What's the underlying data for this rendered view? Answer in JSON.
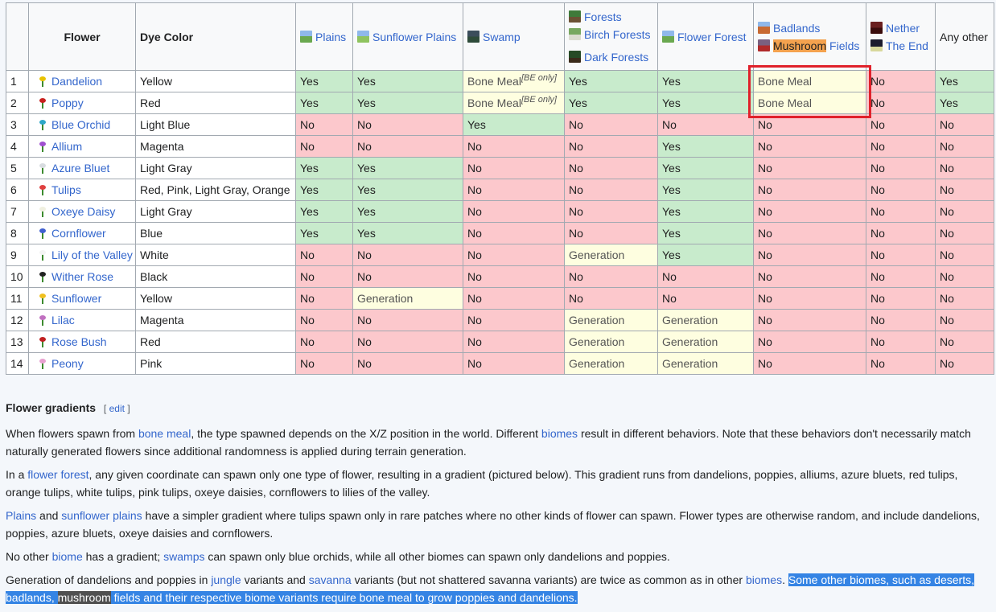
{
  "table": {
    "headers": {
      "num": "",
      "flower": "Flower",
      "dye": "Dye Color",
      "plains": "Plains",
      "sunflower_plains": "Sunflower Plains",
      "swamp": "Swamp",
      "forests": "Forests",
      "birch_forests": "Birch Forests",
      "dark_forests": "Dark Forests",
      "flower_forest": "Flower Forest",
      "badlands": "Badlands",
      "mushroom": "Mushroom",
      "fields": "Fields",
      "nether": "Nether",
      "the_end": "The End",
      "any_other": "Any other"
    },
    "be_only": "[BE only]",
    "rows": [
      {
        "n": "1",
        "flower": "Dandelion",
        "icon_color": "#e8c200",
        "dye": "Yellow",
        "cells": [
          "Yes",
          "Yes",
          "Bone Meal",
          "Yes",
          "Yes",
          "Bone Meal",
          "No",
          "Yes"
        ]
      },
      {
        "n": "2",
        "flower": "Poppy",
        "icon_color": "#c8201e",
        "dye": "Red",
        "cells": [
          "Yes",
          "Yes",
          "Bone Meal",
          "Yes",
          "Yes",
          "Bone Meal",
          "No",
          "Yes"
        ]
      },
      {
        "n": "3",
        "flower": "Blue Orchid",
        "icon_color": "#2ea7c8",
        "dye": "Light Blue",
        "cells": [
          "No",
          "No",
          "Yes",
          "No",
          "No",
          "No",
          "No",
          "No"
        ]
      },
      {
        "n": "4",
        "flower": "Allium",
        "icon_color": "#a050d0",
        "dye": "Magenta",
        "cells": [
          "No",
          "No",
          "No",
          "No",
          "Yes",
          "No",
          "No",
          "No"
        ]
      },
      {
        "n": "5",
        "flower": "Azure Bluet",
        "icon_color": "#d8dce0",
        "dye": "Light Gray",
        "cells": [
          "Yes",
          "Yes",
          "No",
          "No",
          "Yes",
          "No",
          "No",
          "No"
        ]
      },
      {
        "n": "6",
        "flower": "Tulips",
        "icon_color": "#e04040",
        "dye": "Red, Pink, Light Gray, Orange",
        "cells": [
          "Yes",
          "Yes",
          "No",
          "No",
          "Yes",
          "No",
          "No",
          "No"
        ]
      },
      {
        "n": "7",
        "flower": "Oxeye Daisy",
        "icon_color": "#f0f0e0",
        "dye": "Light Gray",
        "cells": [
          "Yes",
          "Yes",
          "No",
          "No",
          "Yes",
          "No",
          "No",
          "No"
        ]
      },
      {
        "n": "8",
        "flower": "Cornflower",
        "icon_color": "#4060d0",
        "dye": "Blue",
        "cells": [
          "Yes",
          "Yes",
          "No",
          "No",
          "Yes",
          "No",
          "No",
          "No"
        ]
      },
      {
        "n": "9",
        "flower": "Lily of the Valley",
        "icon_color": "#f4f4f4",
        "dye": "White",
        "cells": [
          "No",
          "No",
          "No",
          "Generation",
          "Yes",
          "No",
          "No",
          "No"
        ]
      },
      {
        "n": "10",
        "flower": "Wither Rose",
        "icon_color": "#222222",
        "dye": "Black",
        "cells": [
          "No",
          "No",
          "No",
          "No",
          "No",
          "No",
          "No",
          "No"
        ]
      },
      {
        "n": "11",
        "flower": "Sunflower",
        "icon_color": "#f0c020",
        "dye": "Yellow",
        "cells": [
          "No",
          "Generation",
          "No",
          "No",
          "No",
          "No",
          "No",
          "No"
        ]
      },
      {
        "n": "12",
        "flower": "Lilac",
        "icon_color": "#c070c0",
        "dye": "Magenta",
        "cells": [
          "No",
          "No",
          "No",
          "Generation",
          "Generation",
          "No",
          "No",
          "No"
        ]
      },
      {
        "n": "13",
        "flower": "Rose Bush",
        "icon_color": "#c02020",
        "dye": "Red",
        "cells": [
          "No",
          "No",
          "No",
          "Generation",
          "Generation",
          "No",
          "No",
          "No"
        ]
      },
      {
        "n": "14",
        "flower": "Peony",
        "icon_color": "#e8a0d0",
        "dye": "Pink",
        "cells": [
          "No",
          "No",
          "No",
          "Generation",
          "Generation",
          "No",
          "No",
          "No"
        ]
      }
    ]
  },
  "section": {
    "title": "Flower gradients",
    "edit_open": "[",
    "edit": "edit",
    "edit_close": "]",
    "p1": {
      "a": "When flowers spawn from ",
      "link1": "bone meal",
      "b": ", the type spawned depends on the X/Z position in the world. Different ",
      "link2": "biomes",
      "c": " result in different behaviors. Note that these behaviors don't necessarily match naturally generated flowers since additional randomness is applied during terrain generation."
    },
    "p2": {
      "a": "In a ",
      "link1": "flower forest",
      "b": ", any given coordinate can spawn only one type of flower, resulting in a gradient (pictured below). This gradient runs from dandelions, poppies, alliums, azure bluets, red tulips, orange tulips, white tulips, pink tulips, oxeye daisies, cornflowers to lilies of the valley."
    },
    "p3": {
      "link1": "Plains",
      "a": " and ",
      "link2": "sunflower plains",
      "b": " have a simpler gradient where tulips spawn only in rare patches where no other kinds of flower can spawn. Flower types are otherwise random, and include dandelions, poppies, azure bluets, oxeye daisies and cornflowers."
    },
    "p4": {
      "a": "No other ",
      "link1": "biome",
      "b": " has a gradient; ",
      "link2": "swamps",
      "c": " can spawn only blue orchids, while all other biomes can spawn only dandelions and poppies."
    },
    "p5": {
      "a": "Generation of dandelions and poppies in ",
      "link1": "jungle",
      "b": " variants and ",
      "link2": "savanna",
      "c": " variants (but not shattered savanna variants) are twice as common as in other ",
      "link3": "biomes",
      "d": ". ",
      "sel1": "Some other biomes, such as deserts, badlands, ",
      "sel_dark": "mushroom",
      "sel2": " fields and their respective biome variants require bone meal to grow poppies and dandelions."
    }
  },
  "colors": {
    "yes": "#c8ebcc",
    "no": "#fcc8cc",
    "generation": "#fefee0",
    "highlight_border": "#e0212b",
    "selection": "#3584e4"
  }
}
